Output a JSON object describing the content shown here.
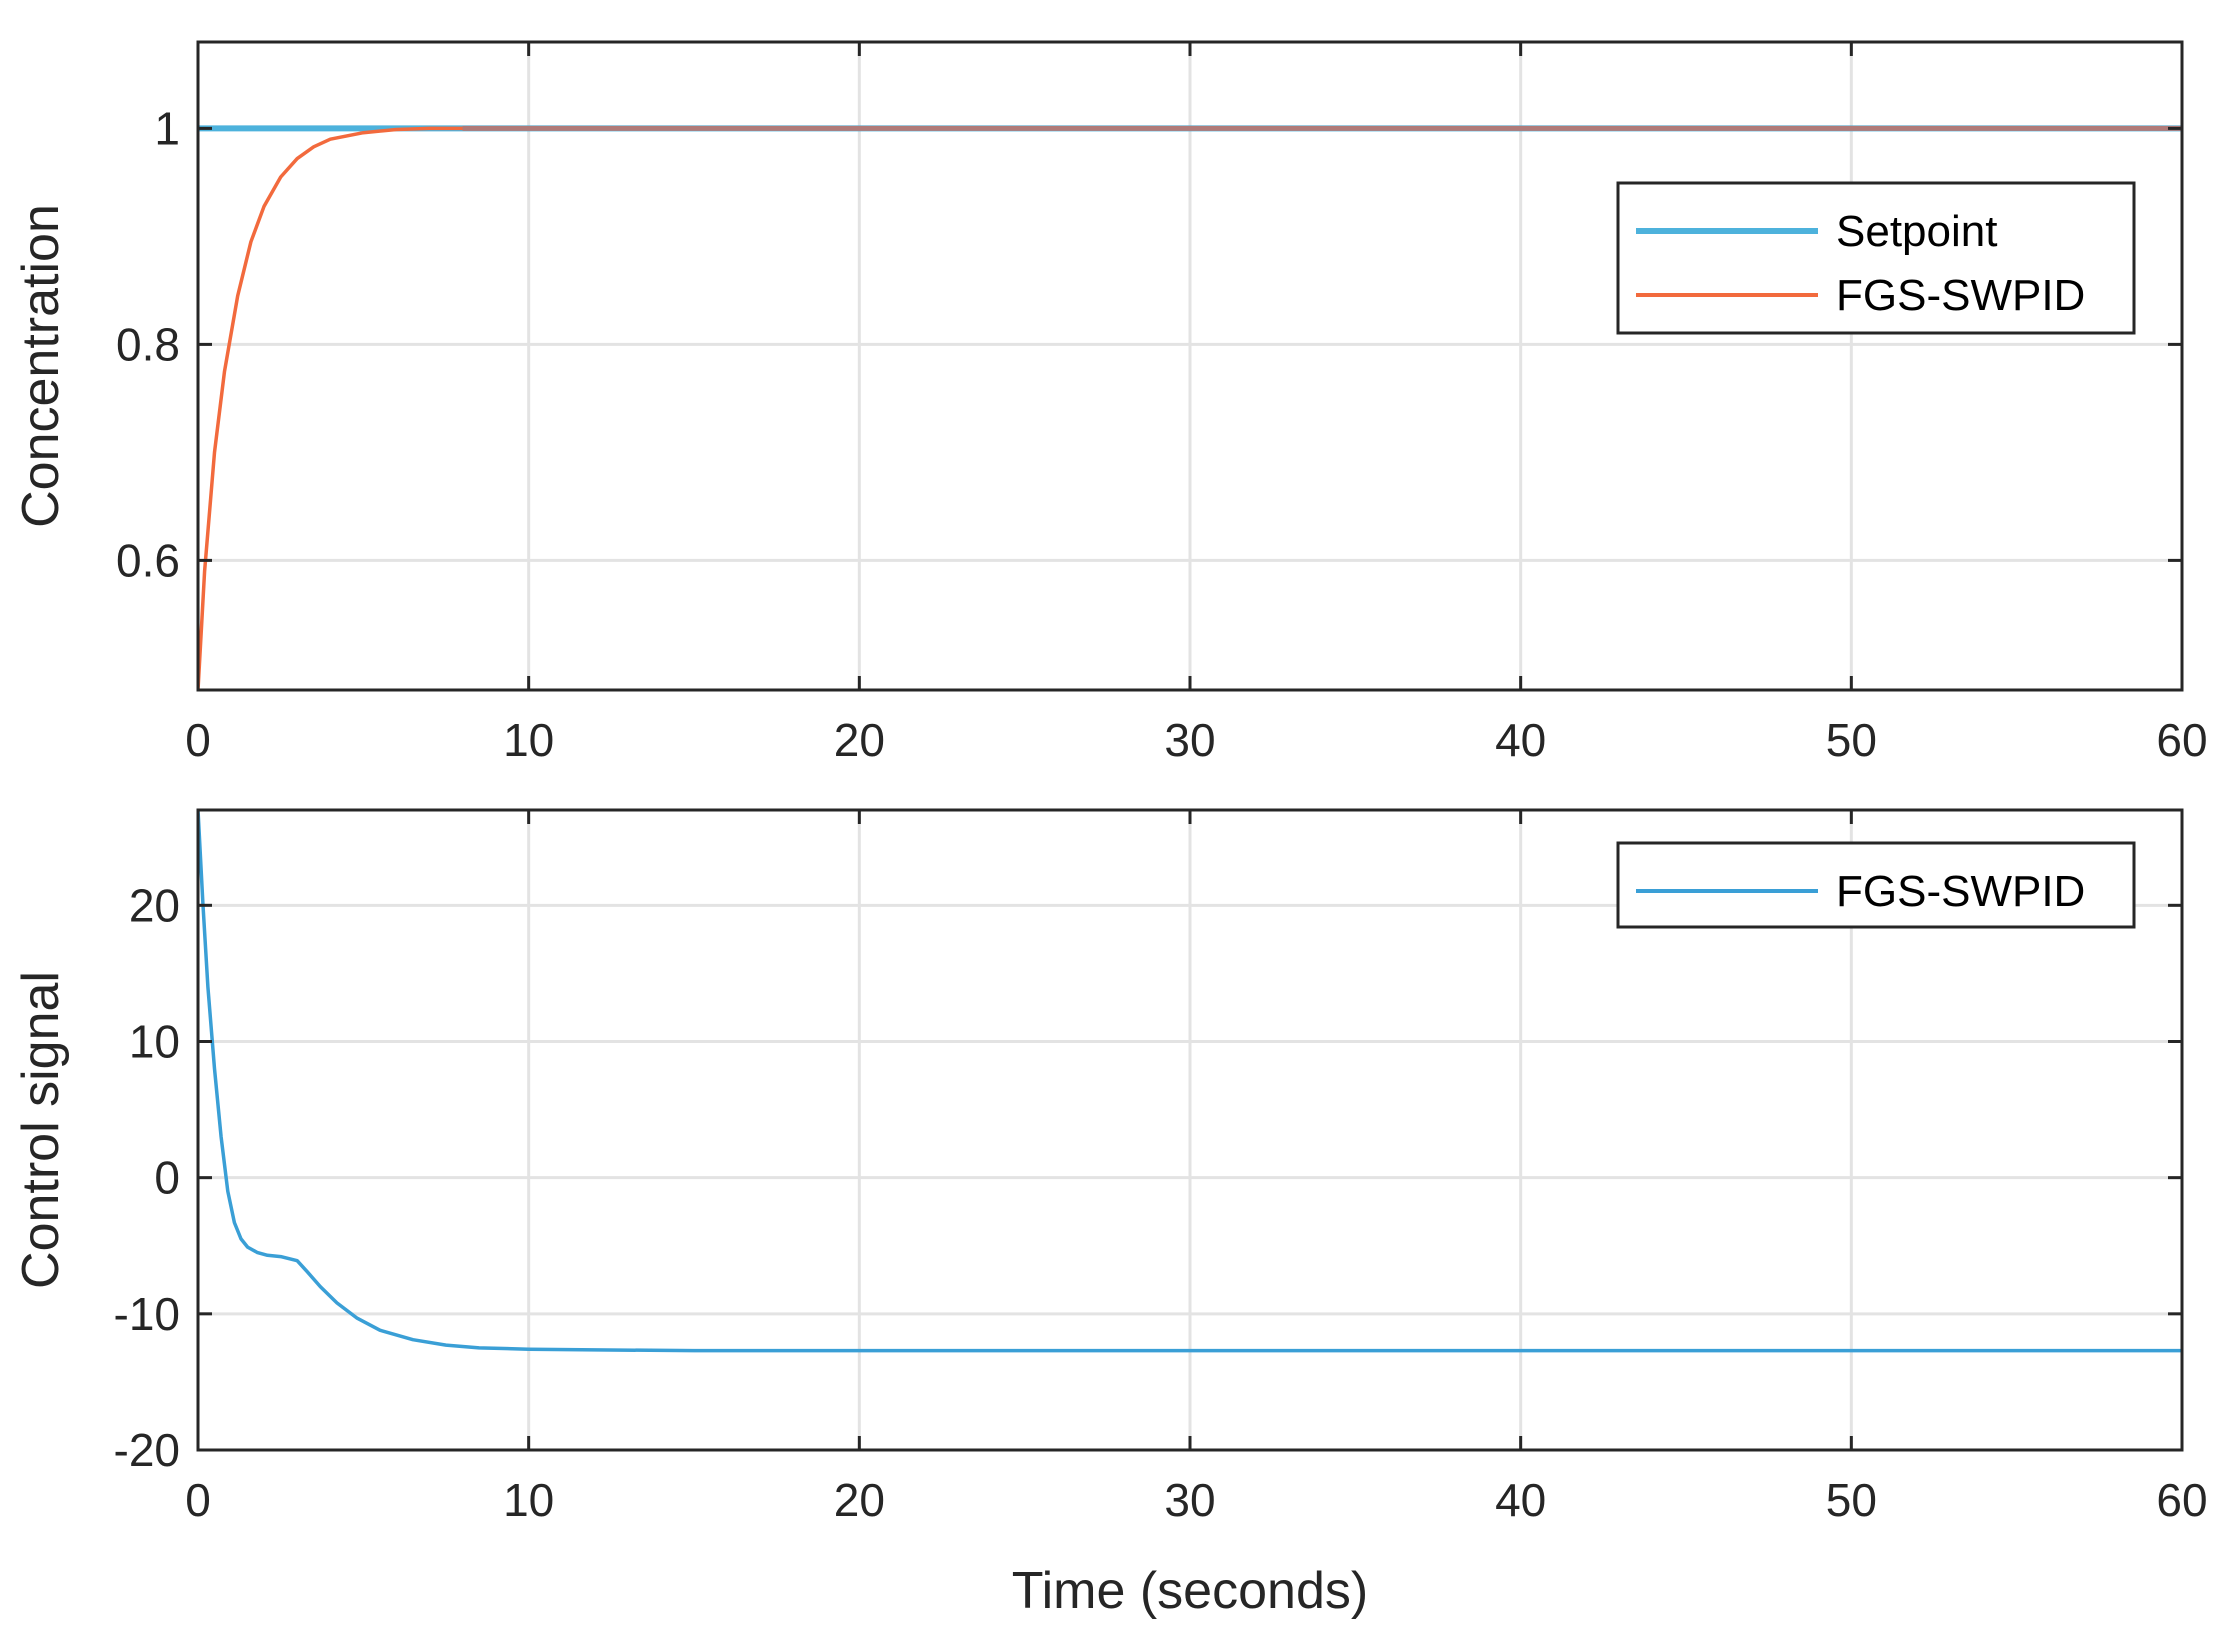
{
  "colors": {
    "setpoint": "#4db2dc",
    "response": "#f26a3d",
    "control": "#3a9fd6",
    "grid": "#e3e3e3",
    "axes": "#262626"
  },
  "chart_data": [
    {
      "type": "line",
      "title": "",
      "xlabel": "",
      "ylabel": "Concentration",
      "xlim": [
        0,
        60
      ],
      "ylim": [
        0.48,
        1.08
      ],
      "xticks": [
        0,
        10,
        20,
        30,
        40,
        50,
        60
      ],
      "yticks": [
        0.6,
        0.8,
        1
      ],
      "xtick_labels": [
        "0",
        "10",
        "20",
        "30",
        "40",
        "50",
        "60"
      ],
      "ytick_labels": [
        "0.6",
        "0.8",
        "1"
      ],
      "grid": true,
      "legend_position": "upper-right",
      "series": [
        {
          "name": "Setpoint",
          "color": "#4db2dc",
          "x": [
            0,
            60
          ],
          "y": [
            1,
            1
          ]
        },
        {
          "name": "FGS-SWPID",
          "color": "#f26a3d",
          "x": [
            0,
            0.2,
            0.5,
            0.8,
            1.2,
            1.6,
            2.0,
            2.5,
            3.0,
            3.5,
            4.0,
            5.0,
            6.0,
            7.0,
            8.0,
            10.0,
            20.0,
            30.0,
            40.0,
            50.0,
            60.0
          ],
          "y": [
            0.48,
            0.59,
            0.7,
            0.775,
            0.845,
            0.895,
            0.928,
            0.955,
            0.972,
            0.983,
            0.99,
            0.996,
            0.999,
            1.0,
            1.0,
            1.0,
            1.0,
            1.0,
            1.0,
            1.0,
            1.0
          ]
        }
      ]
    },
    {
      "type": "line",
      "title": "",
      "xlabel": "Time (seconds)",
      "ylabel": "Control signal",
      "xlim": [
        0,
        60
      ],
      "ylim": [
        -20,
        27
      ],
      "xticks": [
        0,
        10,
        20,
        30,
        40,
        50,
        60
      ],
      "yticks": [
        -20,
        -10,
        0,
        10,
        20
      ],
      "xtick_labels": [
        "0",
        "10",
        "20",
        "30",
        "40",
        "50",
        "60"
      ],
      "ytick_labels": [
        "-20",
        "-10",
        "0",
        "10",
        "20"
      ],
      "grid": true,
      "legend_position": "upper-right",
      "series": [
        {
          "name": "FGS-SWPID",
          "color": "#3a9fd6",
          "x": [
            0,
            0.15,
            0.3,
            0.5,
            0.7,
            0.9,
            1.1,
            1.3,
            1.5,
            1.8,
            2.1,
            2.5,
            3.0,
            3.3,
            3.7,
            4.2,
            4.8,
            5.5,
            6.5,
            7.5,
            8.5,
            10.0,
            12.0,
            15.0,
            20.0,
            30.0,
            40.0,
            50.0,
            60.0
          ],
          "y": [
            27,
            20,
            14,
            8,
            3,
            -1,
            -3.3,
            -4.5,
            -5.1,
            -5.5,
            -5.7,
            -5.8,
            -6.1,
            -6.9,
            -8.0,
            -9.2,
            -10.3,
            -11.2,
            -11.9,
            -12.3,
            -12.5,
            -12.6,
            -12.65,
            -12.7,
            -12.7,
            -12.7,
            -12.7,
            -12.7,
            -12.7
          ]
        }
      ]
    }
  ]
}
